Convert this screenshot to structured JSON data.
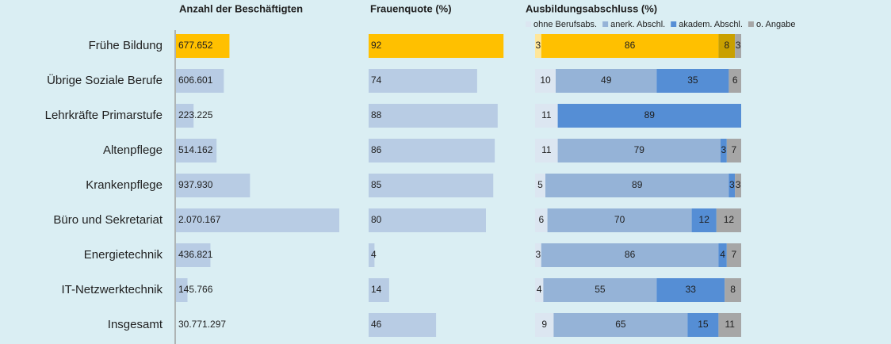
{
  "chart_data": {
    "type": "bar",
    "categories": [
      "Frühe Bildung",
      "Übrige Soziale Berufe",
      "Lehrkräfte Primarstufe",
      "Altenpflege",
      "Krankenpflege",
      "Büro und Sekretariat",
      "Energietechnik",
      "IT-Netzwerktechnik",
      "Insgesamt"
    ],
    "highlight": 0,
    "panels": [
      {
        "title": "Anzahl der Beschäftigten",
        "color": "#b8cce4",
        "highlight_color": "#ffc000",
        "values": [
          677652,
          606601,
          223225,
          514162,
          937930,
          2070167,
          436821,
          145766,
          30771297
        ],
        "value_labels": [
          "677.652",
          "606.601",
          "223.225",
          "514.162",
          "937.930",
          "2.070.167",
          "436.821",
          "145.766",
          "30.771.297"
        ],
        "xlim": [
          0,
          2100000
        ]
      },
      {
        "title": "Frauenquote (%)",
        "color": "#b8cce4",
        "highlight_color": "#ffc000",
        "values": [
          92,
          74,
          88,
          86,
          85,
          80,
          4,
          14,
          46
        ],
        "xlim": [
          0,
          100
        ]
      },
      {
        "title": "Ausbildungsabschluss (%)",
        "stacked": true,
        "xlim": [
          0,
          100
        ],
        "series": [
          {
            "name": "ohne Berufsabs.",
            "color": "#dce6f1",
            "highlight_color": "#ffe699",
            "values": [
              3,
              10,
              11,
              11,
              5,
              6,
              3,
              4,
              9
            ]
          },
          {
            "name": "anerk. Abschl.",
            "color": "#95b3d7",
            "highlight_color": "#ffc000",
            "values": [
              86,
              49,
              null,
              79,
              89,
              70,
              86,
              55,
              65
            ]
          },
          {
            "name": "akadem. Abschl.",
            "color": "#558ed5",
            "highlight_color": "#c9a000",
            "values": [
              8,
              35,
              89,
              3,
              3,
              12,
              4,
              33,
              15
            ]
          },
          {
            "name": "o. Angabe",
            "color": "#a6a6a6",
            "highlight_color": "#a6a6a6",
            "values": [
              3,
              6,
              null,
              7,
              3,
              12,
              7,
              8,
              11
            ]
          }
        ]
      }
    ]
  }
}
